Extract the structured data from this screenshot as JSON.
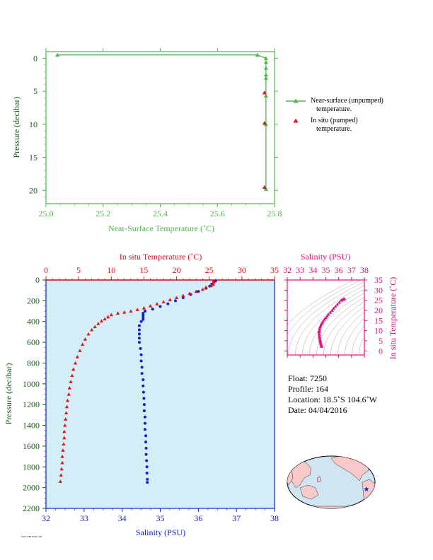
{
  "chart_data": [
    {
      "type": "scatter",
      "name": "near-surface",
      "xlabel": "Near-Surface Temperature (˚C)",
      "ylabel": "Pressure (decibar)",
      "xlim": [
        25.0,
        25.8
      ],
      "ylim": [
        22,
        -1
      ],
      "xticks": [
        "25.0",
        "25.2",
        "25.4",
        "25.6",
        "25.8"
      ],
      "yticks": [
        "0",
        "5",
        "10",
        "15",
        "20"
      ],
      "series": [
        {
          "name": "Near-surface (unpumped) temperature.",
          "color": "#4cb848",
          "marker": "triangle",
          "line": true,
          "points": [
            [
              25.04,
              -0.5
            ],
            [
              25.74,
              -0.5
            ],
            [
              25.77,
              0.0
            ],
            [
              25.77,
              0.6
            ],
            [
              25.77,
              1.5
            ],
            [
              25.77,
              2.5
            ],
            [
              25.77,
              3.0
            ],
            [
              25.77,
              5.7
            ],
            [
              25.77,
              10.0
            ],
            [
              25.77,
              19.8
            ]
          ]
        },
        {
          "name": "In situ (pumped) temperature.",
          "color": "#e8101a",
          "marker": "triangle",
          "line": false,
          "points": [
            [
              25.765,
              5.2
            ],
            [
              25.765,
              9.8
            ],
            [
              25.765,
              19.5
            ]
          ]
        }
      ],
      "legend": [
        {
          "line1": "Near-surface (unpumped)",
          "line2": "temperature."
        },
        {
          "line1": "In situ (pumped)",
          "line2": "temperature."
        }
      ]
    },
    {
      "type": "scatter",
      "name": "profile",
      "title_top": "In situ Temperature (˚C)",
      "xlabel": "Salinity (PSU)",
      "ylabel": "Pressure (decibar)",
      "temp_xlim": [
        0,
        35
      ],
      "sal_xlim": [
        32,
        38
      ],
      "ylim": [
        2200,
        0
      ],
      "temp_ticks": [
        "0",
        "5",
        "10",
        "15",
        "20",
        "25",
        "30",
        "35"
      ],
      "sal_ticks": [
        "32",
        "33",
        "34",
        "35",
        "36",
        "37",
        "38"
      ],
      "yticks": [
        "0",
        "200",
        "400",
        "600",
        "800",
        "1000",
        "1200",
        "1400",
        "1600",
        "1800",
        "2000",
        "2200"
      ],
      "series": [
        {
          "name": "temperature",
          "color": "#e8101a",
          "marker": "triangle",
          "points": [
            [
              25.7,
              10
            ],
            [
              25.7,
              20
            ],
            [
              25.6,
              40
            ],
            [
              25.3,
              55
            ],
            [
              24.5,
              70
            ],
            [
              24.0,
              90
            ],
            [
              23.0,
              110
            ],
            [
              22.0,
              130
            ],
            [
              21.0,
              150
            ],
            [
              20.0,
              170
            ],
            [
              19.0,
              190
            ],
            [
              18.0,
              210
            ],
            [
              17.0,
              230
            ],
            [
              16.0,
              250
            ],
            [
              15.0,
              270
            ],
            [
              14.0,
              285
            ],
            [
              13.0,
              300
            ],
            [
              12.0,
              310
            ],
            [
              11.0,
              320
            ],
            [
              10.0,
              335
            ],
            [
              9.5,
              355
            ],
            [
              9.0,
              375
            ],
            [
              8.5,
              395
            ],
            [
              8.0,
              420
            ],
            [
              7.5,
              450
            ],
            [
              7.0,
              480
            ],
            [
              6.5,
              520
            ],
            [
              6.0,
              570
            ],
            [
              5.6,
              620
            ],
            [
              5.2,
              680
            ],
            [
              4.8,
              740
            ],
            [
              4.5,
              800
            ],
            [
              4.2,
              860
            ],
            [
              4.0,
              920
            ],
            [
              3.8,
              980
            ],
            [
              3.6,
              1040
            ],
            [
              3.5,
              1100
            ],
            [
              3.3,
              1160
            ],
            [
              3.2,
              1220
            ],
            [
              3.1,
              1280
            ],
            [
              3.0,
              1340
            ],
            [
              2.9,
              1400
            ],
            [
              2.8,
              1460
            ],
            [
              2.8,
              1520
            ],
            [
              2.7,
              1580
            ],
            [
              2.6,
              1640
            ],
            [
              2.5,
              1700
            ],
            [
              2.5,
              1760
            ],
            [
              2.4,
              1820
            ],
            [
              2.3,
              1880
            ],
            [
              2.2,
              1940
            ]
          ]
        },
        {
          "name": "salinity",
          "color": "#1020d8",
          "marker": "circle",
          "points": [
            [
              36.45,
              10
            ],
            [
              36.4,
              20
            ],
            [
              36.35,
              40
            ],
            [
              36.3,
              60
            ],
            [
              36.2,
              80
            ],
            [
              36.0,
              110
            ],
            [
              35.8,
              140
            ],
            [
              35.6,
              170
            ],
            [
              35.4,
              200
            ],
            [
              35.2,
              230
            ],
            [
              35.0,
              255
            ],
            [
              34.8,
              280
            ],
            [
              34.6,
              300
            ],
            [
              34.55,
              320
            ],
            [
              34.55,
              340
            ],
            [
              34.55,
              360
            ],
            [
              34.55,
              380
            ],
            [
              34.5,
              400
            ],
            [
              34.45,
              440
            ],
            [
              34.45,
              480
            ],
            [
              34.45,
              520
            ],
            [
              34.45,
              560
            ],
            [
              34.45,
              600
            ],
            [
              34.48,
              660
            ],
            [
              34.5,
              720
            ],
            [
              34.5,
              780
            ],
            [
              34.52,
              840
            ],
            [
              34.52,
              900
            ],
            [
              34.55,
              960
            ],
            [
              34.55,
              1020
            ],
            [
              34.56,
              1080
            ],
            [
              34.57,
              1140
            ],
            [
              34.58,
              1200
            ],
            [
              34.58,
              1260
            ],
            [
              34.6,
              1320
            ],
            [
              34.6,
              1380
            ],
            [
              34.6,
              1440
            ],
            [
              34.62,
              1500
            ],
            [
              34.62,
              1560
            ],
            [
              34.63,
              1620
            ],
            [
              34.63,
              1680
            ],
            [
              34.64,
              1740
            ],
            [
              34.65,
              1800
            ],
            [
              34.65,
              1860
            ],
            [
              34.66,
              1920
            ],
            [
              34.66,
              1950
            ]
          ]
        }
      ]
    },
    {
      "type": "scatter",
      "name": "ts-diagram",
      "xlabel_top": "Salinity (PSU)",
      "ylabel_right": "In situ Temperature (˚C)",
      "xlim": [
        32,
        38
      ],
      "ylim": [
        -2,
        35
      ],
      "xticks": [
        "32",
        "33",
        "34",
        "35",
        "36",
        "37",
        "38"
      ],
      "yticks": [
        "0",
        "5",
        "10",
        "15",
        "20",
        "25",
        "30",
        "35"
      ],
      "color": "#e0107c",
      "points": [
        [
          34.68,
          2.2
        ],
        [
          34.66,
          2.6
        ],
        [
          34.64,
          3.0
        ],
        [
          34.62,
          3.5
        ],
        [
          34.6,
          4.0
        ],
        [
          34.58,
          4.6
        ],
        [
          34.56,
          5.2
        ],
        [
          34.54,
          5.8
        ],
        [
          34.52,
          6.5
        ],
        [
          34.5,
          7.2
        ],
        [
          34.49,
          8.0
        ],
        [
          34.48,
          8.8
        ],
        [
          34.48,
          9.5
        ],
        [
          34.5,
          10.2
        ],
        [
          34.52,
          11.0
        ],
        [
          34.55,
          11.8
        ],
        [
          34.6,
          12.5
        ],
        [
          34.65,
          13.3
        ],
        [
          34.72,
          14.0
        ],
        [
          34.8,
          14.8
        ],
        [
          34.9,
          15.6
        ],
        [
          35.0,
          16.4
        ],
        [
          35.1,
          17.2
        ],
        [
          35.2,
          18.0
        ],
        [
          35.35,
          19.0
        ],
        [
          35.5,
          20.0
        ],
        [
          35.6,
          21.0
        ],
        [
          35.75,
          22.0
        ],
        [
          35.9,
          23.0
        ],
        [
          36.05,
          24.0
        ],
        [
          36.2,
          25.0
        ],
        [
          36.3,
          25.4
        ],
        [
          36.4,
          25.6
        ],
        [
          36.45,
          25.7
        ]
      ]
    }
  ],
  "float_info": {
    "float": "Float:  7250",
    "profile": "Profile:  164",
    "location": "Location:  18.5˚S  104.6˚W",
    "date": "Date:  04/04/2016"
  },
  "footnote": "Float 7250 Profile 164",
  "colors": {
    "green": "#4cb848",
    "red": "#e8101a",
    "blue": "#1020d8",
    "magenta": "#e0107c",
    "panel": "#d3eef7",
    "ocean": "#cfe6f2",
    "land": "#f7c9c9"
  }
}
